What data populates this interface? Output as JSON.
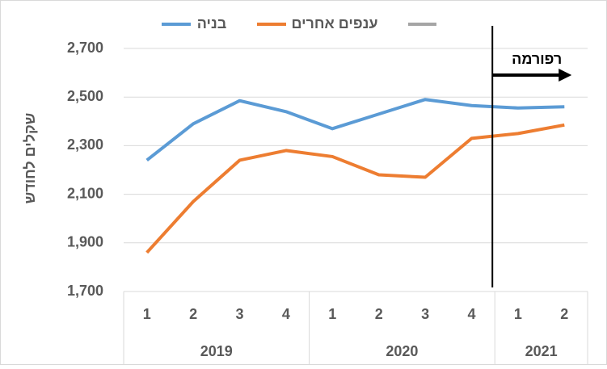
{
  "chart_data": {
    "type": "line",
    "y_label": "שקלים לחודש",
    "categories": [
      "1",
      "2",
      "3",
      "4",
      "1",
      "2",
      "3",
      "4",
      "1",
      "2"
    ],
    "group_labels": [
      "2019",
      "2020",
      "2021"
    ],
    "group_sizes": [
      4,
      4,
      2
    ],
    "series": [
      {
        "name": "בניה",
        "color": "#5b9bd5",
        "values": [
          2240,
          2390,
          2485,
          2440,
          2370,
          2430,
          2490,
          2465,
          2455,
          2460
        ]
      },
      {
        "name": "ענפים אחרים",
        "color": "#ed7d31",
        "values": [
          1860,
          2070,
          2240,
          2280,
          2255,
          2180,
          2170,
          2330,
          2350,
          2385
        ]
      }
    ],
    "annotation": "רפורמה",
    "ylim": [
      1700,
      2700
    ],
    "yticks": [
      {
        "value": 1700,
        "label": "1,700"
      },
      {
        "value": 1900,
        "label": "1,900"
      },
      {
        "value": 2100,
        "label": "2,100"
      },
      {
        "value": 2300,
        "label": "2,300"
      },
      {
        "value": 2500,
        "label": "2,500"
      },
      {
        "value": 2700,
        "label": "2,700"
      }
    ],
    "grid": true
  }
}
